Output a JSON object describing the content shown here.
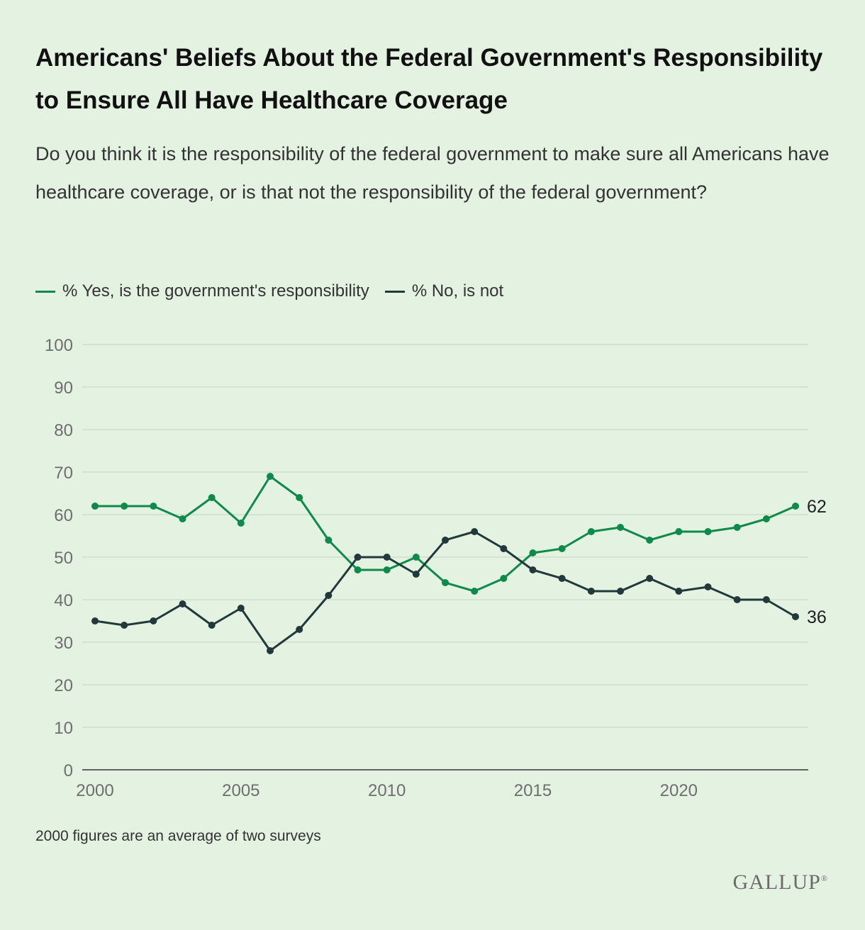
{
  "title": "Americans' Beliefs About the Federal Government's Responsibility to Ensure All Have Healthcare Coverage",
  "subtitle": "Do you think it is the responsibility of the federal government to make sure all Americans have healthcare coverage, or is that not the responsibility of the federal government?",
  "footnote": "2000 figures are an average of two surveys",
  "brand": "GALLUP",
  "brand_mark": "®",
  "chart_data": {
    "type": "line",
    "x": [
      2000,
      2001,
      2002,
      2003,
      2004,
      2005,
      2006,
      2007,
      2008,
      2009,
      2010,
      2011,
      2012,
      2013,
      2014,
      2015,
      2016,
      2017,
      2018,
      2019,
      2020,
      2021,
      2022,
      2023,
      2024
    ],
    "series": [
      {
        "name": "% Yes, is the government's responsibility",
        "color": "#0e8a4b",
        "values": [
          62,
          62,
          62,
          59,
          64,
          58,
          69,
          64,
          54,
          47,
          47,
          50,
          44,
          42,
          45,
          51,
          52,
          56,
          57,
          54,
          56,
          56,
          57,
          59,
          62
        ],
        "end_label": "62"
      },
      {
        "name": "% No, is not",
        "color": "#22393b",
        "values": [
          35,
          34,
          35,
          39,
          34,
          38,
          28,
          33,
          41,
          50,
          50,
          46,
          54,
          56,
          52,
          47,
          45,
          42,
          42,
          45,
          42,
          43,
          40,
          40,
          36
        ],
        "end_label": "36"
      }
    ],
    "x_ticks": [
      2000,
      2005,
      2010,
      2015,
      2020
    ],
    "y_ticks": [
      0,
      10,
      20,
      30,
      40,
      50,
      60,
      70,
      80,
      90,
      100
    ],
    "xlim": [
      2000,
      2024
    ],
    "ylim": [
      0,
      100
    ],
    "grid": true,
    "legend": "top-left"
  }
}
